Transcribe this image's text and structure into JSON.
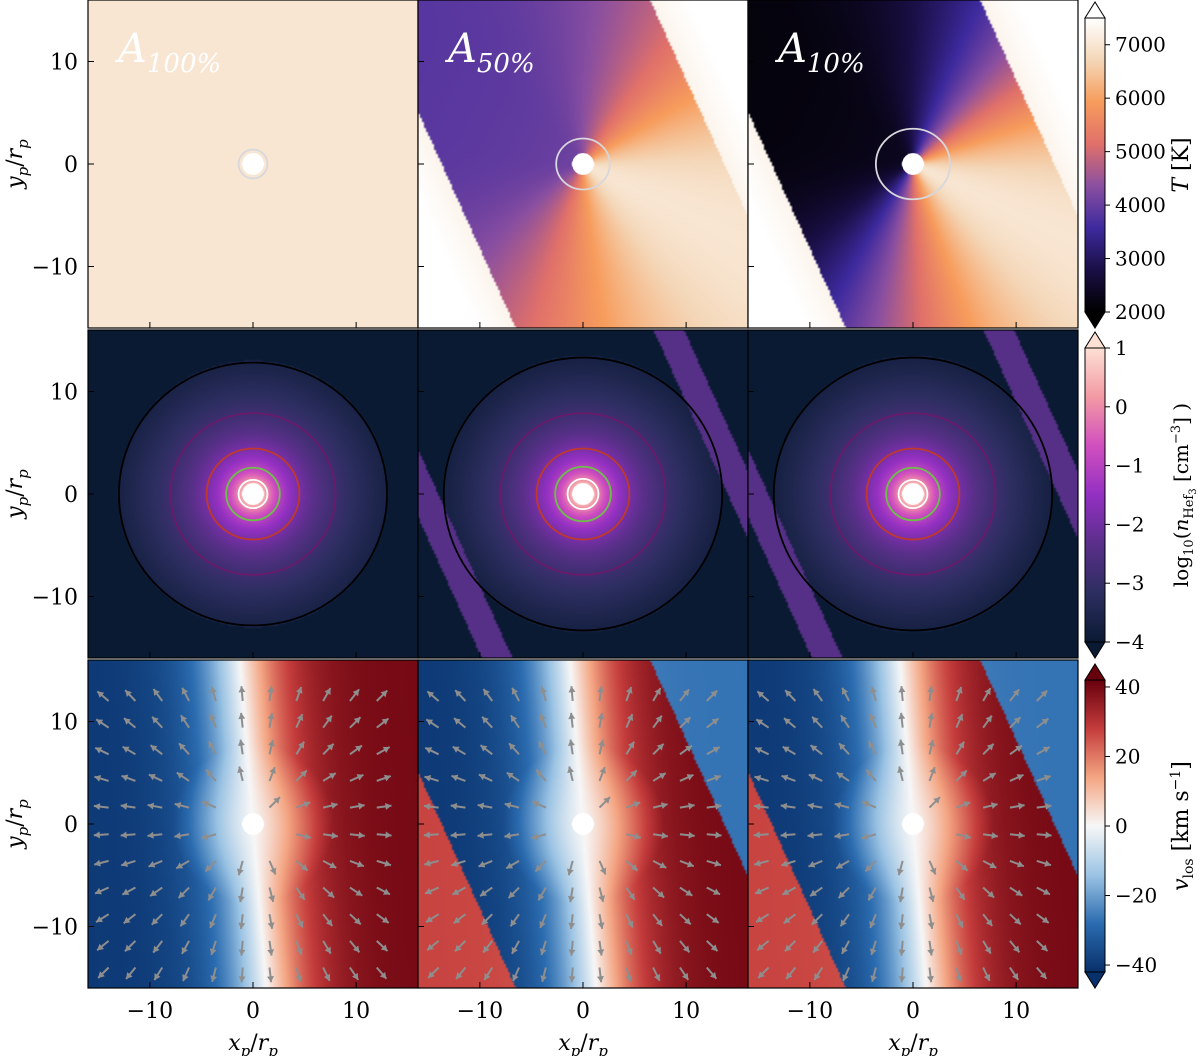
{
  "chart_data": {
    "type": "heatmap",
    "layout": "3x3 grid of panels with shared axes, one colorbar per row",
    "columns": [
      {
        "label_base": "A",
        "label_sub": "100%"
      },
      {
        "label_base": "A",
        "label_sub": "50%"
      },
      {
        "label_base": "A",
        "label_sub": "10%"
      }
    ],
    "xlabel": {
      "base": "x",
      "sub": "p",
      "sep": "/",
      "base2": "r",
      "sub2": "p"
    },
    "ylabel": {
      "base": "y",
      "sub": "p",
      "sep": "/",
      "base2": "r",
      "sub2": "p"
    },
    "xlim": [
      -16,
      16
    ],
    "ylim": [
      -16,
      16
    ],
    "xticks": [
      -10,
      0,
      10
    ],
    "yticks": [
      -10,
      0,
      10
    ],
    "tick_labels": [
      "−10",
      "0",
      "10"
    ],
    "planet": {
      "x": 0,
      "y": 0,
      "radius": 1
    },
    "rows": [
      {
        "quantity": "T",
        "colorbar_label": "T [K]",
        "colorbar_label_parts": {
          "sym": "T",
          "unit": " [K]"
        },
        "colormap": "magma-like (black → purple → orange → cream)",
        "colormap_stops": [
          "#000000",
          "#1a0f45",
          "#3d2a9e",
          "#8a4fa0",
          "#e0706a",
          "#f79c5c",
          "#f4d7b8",
          "#ffffff"
        ],
        "range": [
          2000,
          7500
        ],
        "colorbar_ticks": [
          2000,
          3000,
          4000,
          5000,
          6000,
          7000
        ],
        "colorbar_tick_labels": [
          "2000",
          "3000",
          "4000",
          "5000",
          "6000",
          "7000"
        ],
        "contours": "light grey isotherm",
        "panel_values": [
          {
            "description": "uniform",
            "value": 7000
          },
          {
            "nightside_min": 3800,
            "dayside_max": 7000
          },
          {
            "nightside_min": 2100,
            "dayside_max": 7000
          }
        ]
      },
      {
        "quantity": "log10(n_He f3)",
        "colorbar_label": "log10(n_Hef3 [cm^-3])",
        "colorbar_label_parts": {
          "pre": "log",
          "pre_sub": "10",
          "open": "(",
          "sym": "n",
          "sym_sub": "Hef",
          "sym_subsub": "3",
          "unit_pre": " [cm",
          "unit_sup": "−3",
          "unit_post": "] )"
        },
        "colormap": "magenta/purple (navy → purple → magenta → pink → white)",
        "colormap_stops": [
          "#0b1a33",
          "#2c2e60",
          "#5a2f8a",
          "#9330c2",
          "#d14fbf",
          "#f39aa4",
          "#fde0d4"
        ],
        "range": [
          -4,
          1
        ],
        "colorbar_ticks": [
          -4,
          -3,
          -2,
          -1,
          0,
          1
        ],
        "colorbar_tick_labels": [
          "−4",
          "−3",
          "−2",
          "−1",
          "0",
          "1"
        ],
        "contour_levels": [
          -4,
          -3,
          -2,
          -1,
          0
        ],
        "contour_colors": [
          "#000000",
          "#6b1a6b",
          "#c0392b",
          "#6cc04a",
          "#ffffff"
        ],
        "contour_radii_rp": [
          [
            13,
            8,
            4.5,
            2.6,
            1.4
          ],
          [
            13.5,
            8,
            4.5,
            2.7,
            1.5
          ],
          [
            13.5,
            8,
            4.5,
            2.6,
            1.4
          ]
        ]
      },
      {
        "quantity": "v_los",
        "colorbar_label": "v_los [km s^-1]",
        "colorbar_label_parts": {
          "sym": "v",
          "sym_sub": "los",
          "unit_pre": " [km s",
          "unit_sup": "−1",
          "unit_post": "]"
        },
        "colormap": "RdBu diverging (blue → white → red)",
        "colormap_stops": [
          "#08306b",
          "#2b6cb0",
          "#9cc4e4",
          "#f7f7f7",
          "#f4a582",
          "#c43c3c",
          "#67000d"
        ],
        "range": [
          -42,
          42
        ],
        "colorbar_ticks": [
          -40,
          -20,
          0,
          20,
          40
        ],
        "colorbar_tick_labels": [
          "−40",
          "−20",
          "0",
          "20",
          "40"
        ],
        "arrows": "grey velocity vectors showing outflow from planet",
        "peak_speed": 40
      }
    ]
  }
}
